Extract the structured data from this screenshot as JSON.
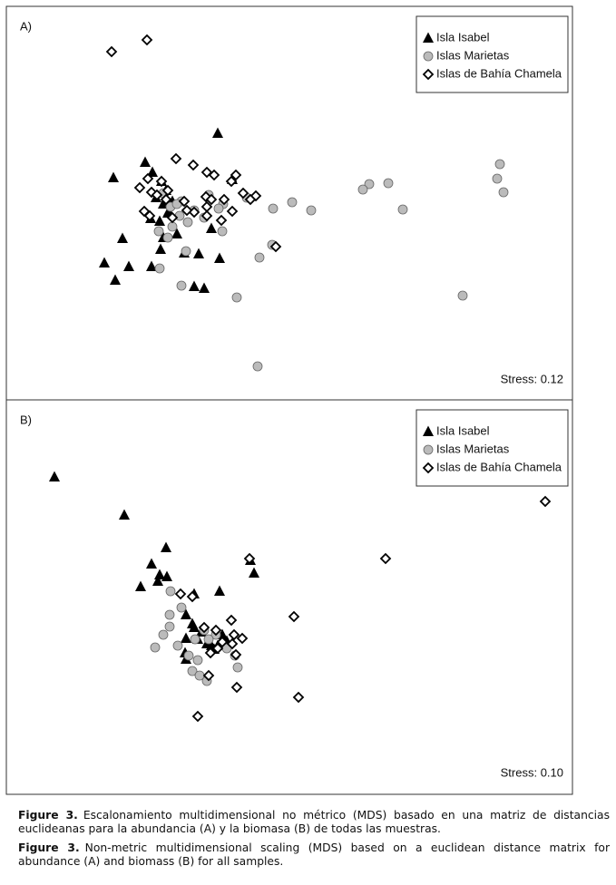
{
  "chart_data": [
    {
      "type": "scatter",
      "label": "A)",
      "stress": "Stress: 0.12",
      "legend": "upper right",
      "xlim": [
        0,
        624
      ],
      "ylim": [
        0,
        434
      ],
      "series": [
        {
          "name": "Isla Isabel",
          "marker": "triangle",
          "color": "#000000",
          "x": [
            233,
            118,
            153,
            249,
            128,
            108,
            120,
            135,
            160,
            196,
            212,
            235,
            207,
            218,
            170,
            173,
            159,
            169,
            179,
            165,
            173,
            183,
            178,
            226,
            188,
            176,
            161,
            171
          ],
          "y": [
            294,
            245,
            262,
            243,
            178,
            151,
            132,
            147,
            147,
            162,
            161,
            156,
            125,
            123,
            166,
            179,
            200,
            197,
            208,
            223,
            216,
            219,
            206,
            189,
            183,
            231,
            251,
            241
          ]
        },
        {
          "name": "Islas Marietas",
          "marker": "circle",
          "color": "#bbbbbb",
          "x": [
            544,
            541,
            548,
            400,
            393,
            421,
            437,
            336,
            315,
            294,
            265,
            239,
            234,
            238,
            293,
            279,
            254,
            277,
            503,
            193,
            169,
            198,
            178,
            183,
            191,
            200,
            207,
            173,
            181,
            193,
            223,
            218,
            168,
            188
          ],
          "y": [
            260,
            244,
            229,
            238,
            232,
            239,
            210,
            209,
            218,
            211,
            223,
            216,
            211,
            186,
            171,
            157,
            113,
            37,
            115,
            126,
            145,
            164,
            179,
            191,
            203,
            196,
            209,
            228,
            213,
            219,
            226,
            201,
            186,
            216
          ]
        },
        {
          "name": "Islas de Bahía Chamela",
          "marker": "diamond",
          "color": "#ffffff",
          "x": [
            116,
            155,
            187,
            206,
            221,
            229,
            253,
            248,
            156,
            171,
            147,
            160,
            166,
            178,
            176,
            196,
            220,
            226,
            261,
            275,
            269,
            240,
            221,
            207,
            199,
            249,
            237,
            221,
            152,
            158,
            183,
            297
          ],
          "y": [
            384,
            397,
            266,
            259,
            251,
            248,
            248,
            241,
            244,
            241,
            234,
            229,
            226,
            231,
            221,
            219,
            224,
            221,
            228,
            225,
            221,
            221,
            213,
            207,
            209,
            208,
            198,
            203,
            208,
            203,
            201,
            169
          ]
        }
      ]
    },
    {
      "type": "scatter",
      "label": "B)",
      "stress": "Stress: 0.10",
      "legend": "upper right",
      "xlim": [
        0,
        624
      ],
      "ylim": [
        0,
        435
      ],
      "series": [
        {
          "name": "Isla Isabel",
          "marker": "triangle",
          "color": "#000000",
          "x": [
            53,
            130,
            176,
            160,
            169,
            177,
            167,
            148,
            235,
            273,
            269,
            207,
            198,
            205,
            207,
            215,
            198,
            211,
            221,
            226,
            233,
            229,
            197,
            198,
            238,
            243
          ],
          "y": [
            350,
            308,
            272,
            254,
            242,
            240,
            235,
            229,
            224,
            244,
            258,
            221,
            198,
            188,
            184,
            179,
            172,
            171,
            166,
            164,
            164,
            160,
            156,
            149,
            176,
            169
          ]
        },
        {
          "name": "Islas Marietas",
          "marker": "circle",
          "color": "#bbbbbb",
          "x": [
            181,
            193,
            180,
            180,
            173,
            164,
            189,
            201,
            211,
            205,
            213,
            221,
            252,
            255,
            231,
            218,
            223,
            208,
            243
          ],
          "y": [
            224,
            206,
            198,
            185,
            176,
            162,
            164,
            153,
            148,
            136,
            131,
            125,
            153,
            140,
            176,
            181,
            171,
            171,
            161
          ]
        },
        {
          "name": "Islas de Bahía Chamela",
          "marker": "diamond",
          "color": "#ffffff",
          "x": [
            594,
            418,
            268,
            317,
            322,
            211,
            254,
            223,
            192,
            205,
            248,
            260,
            249,
            253,
            231,
            218,
            251,
            233,
            225,
            238
          ],
          "y": [
            323,
            260,
            260,
            196,
            107,
            86,
            118,
            131,
            221,
            218,
            192,
            172,
            166,
            154,
            181,
            184,
            176,
            161,
            156,
            168
          ]
        }
      ]
    }
  ],
  "caption": [
    {
      "label": "Figure 3.",
      "text": "Escalonamiento multidimensional no métrico (MDS) basado en una matriz de distancias euclideanas para la abundancia (A) y la biomasa (B) de todas las muestras."
    },
    {
      "label": "Figure 3.",
      "text": "Non-metric multidimensional scaling (MDS) based on a euclidean distance matrix for abundance (A) and biomass (B) for all samples."
    }
  ]
}
